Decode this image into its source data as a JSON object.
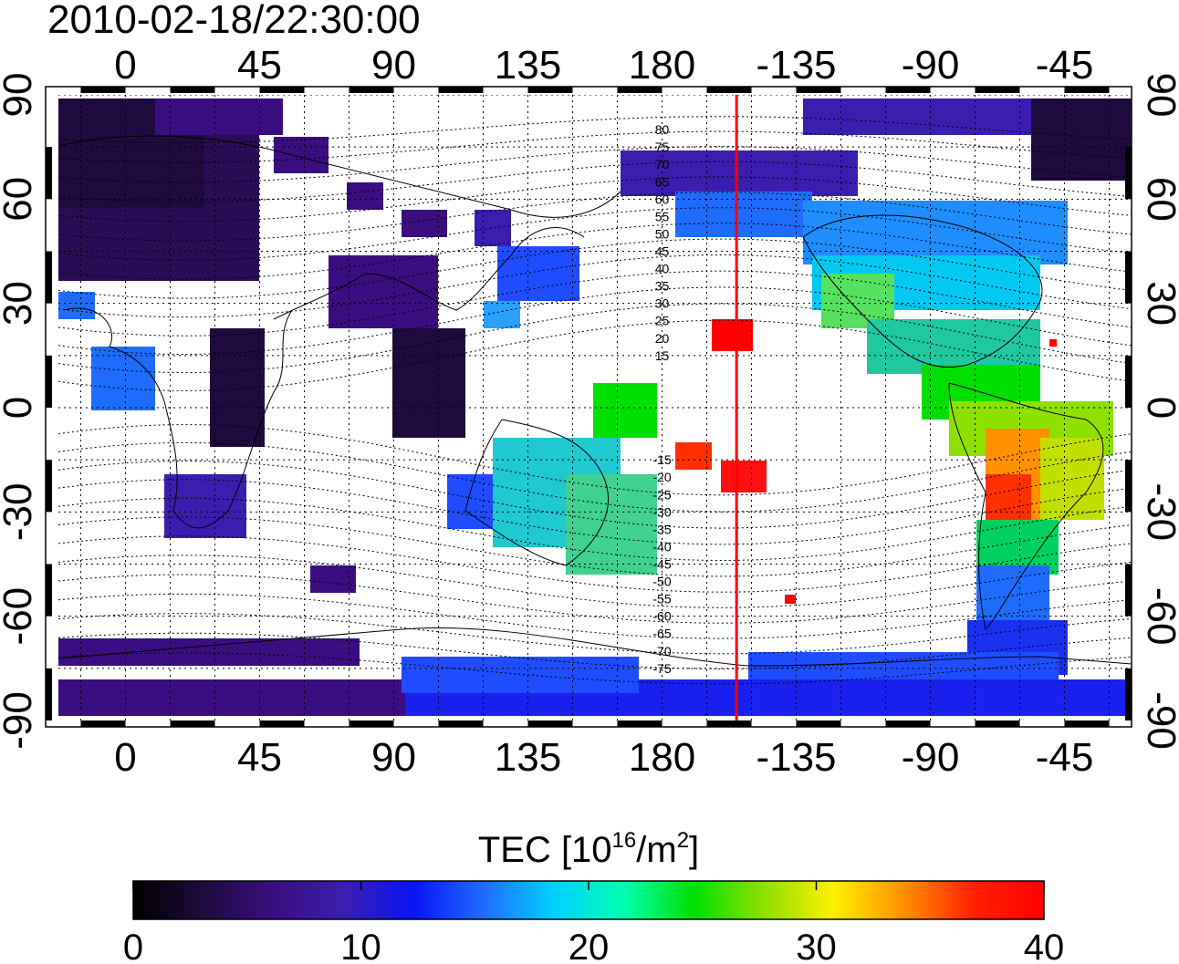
{
  "timestamp": "2010-02-18/22:30:00",
  "colorbar_label": "TEC  [10",
  "colorbar_label_sup1": "16",
  "colorbar_label_mid": "/m",
  "colorbar_label_sup2": "2",
  "colorbar_label_end": "]",
  "lon_ticks": [
    {
      "deg": 0,
      "label": "0"
    },
    {
      "deg": 45,
      "label": "45"
    },
    {
      "deg": 90,
      "label": "90"
    },
    {
      "deg": 135,
      "label": "135"
    },
    {
      "deg": 180,
      "label": "180"
    },
    {
      "deg": 225,
      "label": "-135"
    },
    {
      "deg": 270,
      "label": "-90"
    },
    {
      "deg": 315,
      "label": "-45"
    }
  ],
  "lat_ticks": [
    {
      "deg": 90,
      "label": "90"
    },
    {
      "deg": 60,
      "label": "60"
    },
    {
      "deg": 30,
      "label": "30"
    },
    {
      "deg": 0,
      "label": "0"
    },
    {
      "deg": -30,
      "label": "-30"
    },
    {
      "deg": -60,
      "label": "-60"
    },
    {
      "deg": -90,
      "label": "-90"
    }
  ],
  "magnetic_lat_labels": [
    "80",
    "75",
    "70",
    "65",
    "60",
    "55",
    "50",
    "45",
    "40",
    "35",
    "30",
    "25",
    "20",
    "15",
    "-15",
    "-20",
    "-25",
    "-30",
    "-35",
    "-40",
    "-45",
    "-50",
    "-55",
    "-60",
    "-65",
    "-70",
    "-75"
  ],
  "colorbar_ticks": [
    {
      "value": 0,
      "label": "0"
    },
    {
      "value": 10,
      "label": "10"
    },
    {
      "value": 20,
      "label": "20"
    },
    {
      "value": 30,
      "label": "30"
    },
    {
      "value": 40,
      "label": "40"
    }
  ],
  "colorbar_range": [
    0,
    40
  ],
  "colorbar_stops": [
    "#000000",
    "#1e0a3c",
    "#3a0e80",
    "#3b1eb0",
    "#0a14f5",
    "#1f6cff",
    "#00d0ff",
    "#00ffb0",
    "#00e000",
    "#8ee000",
    "#fff000",
    "#ff9000",
    "#ff2000",
    "#ff0000"
  ],
  "terminator_lon_deg": 205,
  "terminator_color": "#ff0000",
  "colors": {
    "no_data": "#ffffff",
    "coastline": "#000000",
    "grid": "#000000"
  }
}
